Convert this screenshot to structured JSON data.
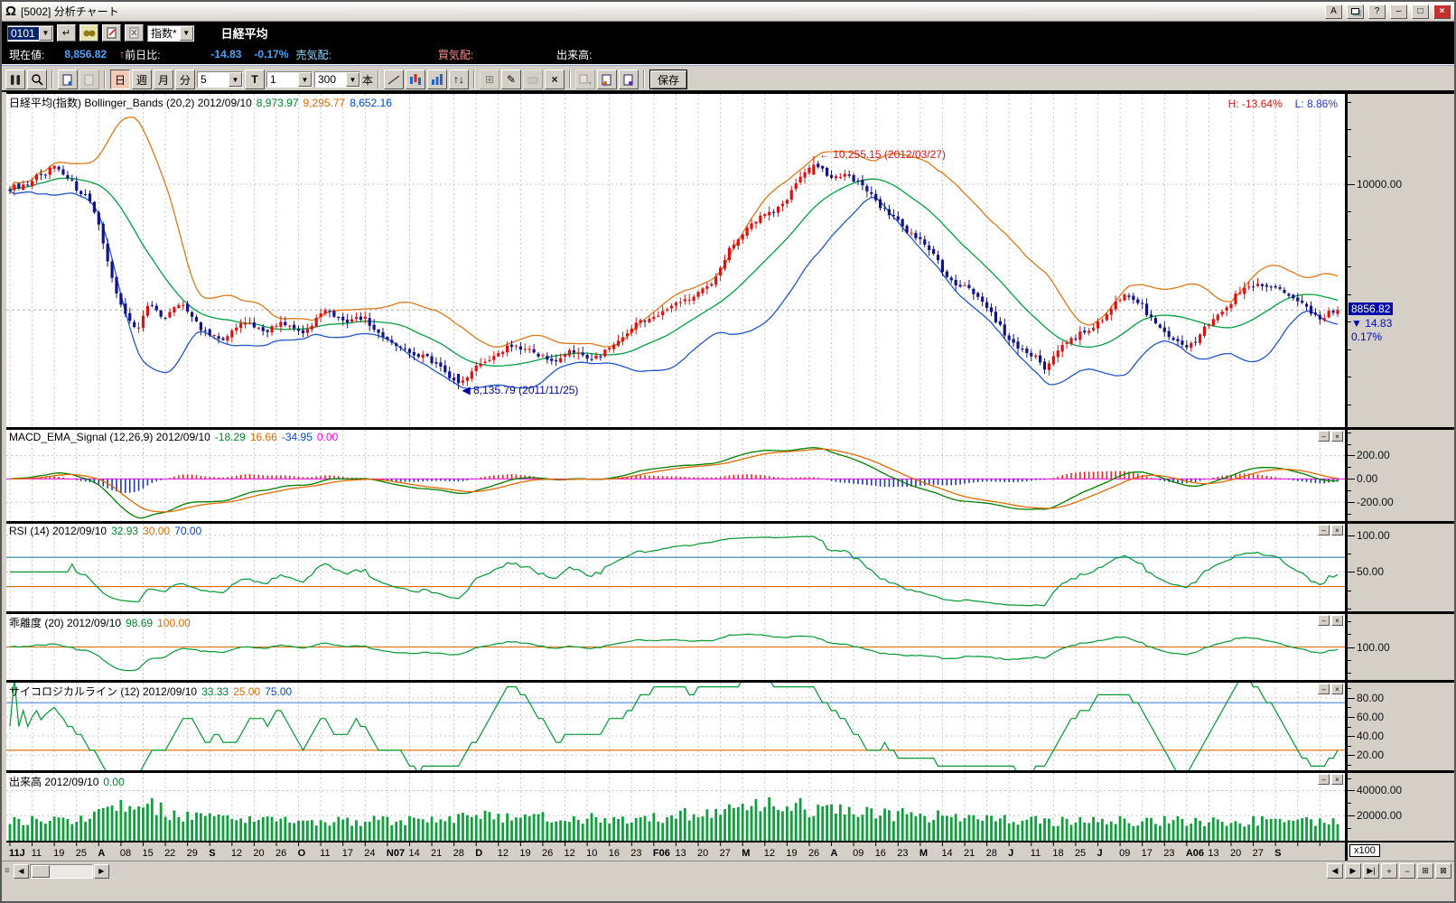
{
  "titlebar": {
    "title": "[5002] 分析チャート",
    "logo": "Ω",
    "a_label": "A",
    "help_label": "?",
    "min_label": "–",
    "max_label": "□",
    "close_label": "×"
  },
  "symbol_bar": {
    "code": "0101",
    "category": "指数*",
    "name": "日経平均"
  },
  "quote_bar": {
    "price_label": "現在値:",
    "price": "8,856.82",
    "arrow": "↑",
    "change_label": "前日比:",
    "change": "-14.83",
    "change_pct": "-0.17%",
    "ask_label": "売気配:",
    "bid_label": "買気配:",
    "volume_label": "出来高:"
  },
  "toolbar": {
    "day": "日",
    "week": "週",
    "month": "月",
    "minute": "分",
    "minute_value": "5",
    "tick_label": "T",
    "tick_value": "1",
    "bars_value": "300",
    "bars_unit": "本",
    "updown": "↑↓",
    "save": "保存"
  },
  "icons": {
    "combo_arrow": "▼",
    "enter": "↵",
    "pencil": "✎",
    "delete": "×",
    "grid": "⊞",
    "grid2": "⊠"
  },
  "main_panel": {
    "title": "日経平均(指数) Bollinger_Bands (20,2) 2012/09/10",
    "values": [
      {
        "text": "8,973.97",
        "color": "#00882a"
      },
      {
        "text": "9,295.77",
        "color": "#e06a00"
      },
      {
        "text": "8,652.16",
        "color": "#0044dd"
      }
    ],
    "high_label": "H: -13.64%",
    "high_color": "#dd1111",
    "low_label": "L: 8.86%",
    "low_color": "#2233cc",
    "price_tag": "8856.82",
    "price_change": "▼ 14.83",
    "price_pct": "0.17%"
  },
  "sub_panels": [
    {
      "id": "macd",
      "title": "MACD_EMA_Signal (12,26,9) 2012/09/10",
      "values": [
        {
          "text": "-18.29",
          "color": "#00882a"
        },
        {
          "text": "16.66",
          "color": "#e06a00"
        },
        {
          "text": "-34.95",
          "color": "#0044dd"
        },
        {
          "text": "0.00",
          "color": "#ff00ff"
        }
      ]
    },
    {
      "id": "rsi",
      "title": "RSI (14) 2012/09/10",
      "values": [
        {
          "text": "32.93",
          "color": "#00882a"
        },
        {
          "text": "30.00",
          "color": "#e06a00"
        },
        {
          "text": "70.00",
          "color": "#0044dd"
        }
      ]
    },
    {
      "id": "dev",
      "title": "乖離度 (20) 2012/09/10",
      "values": [
        {
          "text": "98.69",
          "color": "#00882a"
        },
        {
          "text": "100.00",
          "color": "#e06a00"
        }
      ]
    },
    {
      "id": "psy",
      "title": "サイコロジカルライン (12) 2012/09/10",
      "values": [
        {
          "text": "33.33",
          "color": "#00882a"
        },
        {
          "text": "25.00",
          "color": "#e06a00"
        },
        {
          "text": "75.00",
          "color": "#0044dd"
        }
      ]
    },
    {
      "id": "vol",
      "title": "出来高 2012/09/10",
      "values": [
        {
          "text": "0.00",
          "color": "#00882a"
        }
      ]
    }
  ],
  "volume_unit": "x100",
  "bottom_bar": {
    "nav": [
      "◀",
      "▶",
      "▶|",
      "+",
      "−",
      "⊞",
      "⊠"
    ]
  },
  "chart_data": {
    "type": "candlestick",
    "symbol": "日経平均(指数)",
    "date": "2012/09/10",
    "bars": 300,
    "last_close": 8856.82,
    "high_point": {
      "t": 0.607,
      "price": 10255.15,
      "date": "2012/03/27",
      "label": "← 10,255.15 (2012/03/27)"
    },
    "low_point": {
      "t": 0.337,
      "price": 8135.79,
      "date": "2011/11/25",
      "label": "◀ 8,135.79 (2011/11/25)"
    },
    "price_keypoints": [
      [
        0,
        9950
      ],
      [
        0.02,
        10080
      ],
      [
        0.035,
        10140
      ],
      [
        0.05,
        9930
      ],
      [
        0.062,
        9810
      ],
      [
        0.072,
        9380
      ],
      [
        0.082,
        8920
      ],
      [
        0.095,
        8640
      ],
      [
        0.105,
        8930
      ],
      [
        0.115,
        8760
      ],
      [
        0.13,
        8940
      ],
      [
        0.145,
        8660
      ],
      [
        0.16,
        8560
      ],
      [
        0.175,
        8760
      ],
      [
        0.19,
        8660
      ],
      [
        0.205,
        8760
      ],
      [
        0.22,
        8610
      ],
      [
        0.235,
        8840
      ],
      [
        0.25,
        8760
      ],
      [
        0.265,
        8800
      ],
      [
        0.28,
        8640
      ],
      [
        0.295,
        8500
      ],
      [
        0.31,
        8460
      ],
      [
        0.325,
        8340
      ],
      [
        0.337,
        8180
      ],
      [
        0.35,
        8360
      ],
      [
        0.365,
        8460
      ],
      [
        0.38,
        8560
      ],
      [
        0.395,
        8450
      ],
      [
        0.41,
        8360
      ],
      [
        0.425,
        8460
      ],
      [
        0.44,
        8410
      ],
      [
        0.455,
        8520
      ],
      [
        0.47,
        8720
      ],
      [
        0.485,
        8800
      ],
      [
        0.5,
        8870
      ],
      [
        0.515,
        8960
      ],
      [
        0.53,
        9120
      ],
      [
        0.545,
        9480
      ],
      [
        0.56,
        9640
      ],
      [
        0.575,
        9760
      ],
      [
        0.59,
        9960
      ],
      [
        0.6,
        10120
      ],
      [
        0.607,
        10190
      ],
      [
        0.617,
        10090
      ],
      [
        0.63,
        10060
      ],
      [
        0.645,
        9960
      ],
      [
        0.66,
        9760
      ],
      [
        0.675,
        9560
      ],
      [
        0.69,
        9460
      ],
      [
        0.705,
        9120
      ],
      [
        0.72,
        9060
      ],
      [
        0.735,
        8900
      ],
      [
        0.75,
        8660
      ],
      [
        0.765,
        8500
      ],
      [
        0.78,
        8360
      ],
      [
        0.795,
        8560
      ],
      [
        0.81,
        8660
      ],
      [
        0.825,
        8810
      ],
      [
        0.84,
        9000
      ],
      [
        0.852,
        8860
      ],
      [
        0.864,
        8700
      ],
      [
        0.876,
        8560
      ],
      [
        0.888,
        8460
      ],
      [
        0.9,
        8660
      ],
      [
        0.912,
        8810
      ],
      [
        0.926,
        9050
      ],
      [
        0.94,
        9140
      ],
      [
        0.955,
        9100
      ],
      [
        0.97,
        8950
      ],
      [
        0.985,
        8820
      ],
      [
        1,
        8856.82
      ]
    ],
    "volume_keypoints": [
      [
        0,
        15000
      ],
      [
        0.05,
        17000
      ],
      [
        0.09,
        30000
      ],
      [
        0.1,
        34000
      ],
      [
        0.12,
        20000
      ],
      [
        0.2,
        15000
      ],
      [
        0.3,
        16000
      ],
      [
        0.37,
        20000
      ],
      [
        0.45,
        17000
      ],
      [
        0.5,
        20000
      ],
      [
        0.55,
        24000
      ],
      [
        0.57,
        28000
      ],
      [
        0.585,
        33000
      ],
      [
        0.6,
        26000
      ],
      [
        0.63,
        23000
      ],
      [
        0.7,
        19000
      ],
      [
        0.75,
        17000
      ],
      [
        0.8,
        15000
      ],
      [
        0.85,
        16000
      ],
      [
        0.9,
        15000
      ],
      [
        0.95,
        16000
      ],
      [
        1,
        14000
      ]
    ],
    "indicators": {
      "bollinger": [
        20,
        2
      ],
      "macd": [
        12,
        26,
        9
      ],
      "rsi": 14,
      "dev": 20,
      "psy": 12
    },
    "axes": {
      "main": {
        "min": 7800,
        "max": 10820,
        "minor": 250,
        "ticks": [
          {
            "v": 10000,
            "label": "10000.00"
          }
        ]
      },
      "macd": {
        "min": -360,
        "max": 420,
        "minor": 100,
        "ticks": [
          {
            "v": 200,
            "label": "200.00"
          },
          {
            "v": 0,
            "label": "0.00"
          },
          {
            "v": -200,
            "label": "-200.00"
          }
        ]
      },
      "rsi": {
        "min": -4,
        "max": 116,
        "minor": 25,
        "ticks": [
          {
            "v": 100,
            "label": "100.00"
          },
          {
            "v": 50,
            "label": "50.00"
          }
        ],
        "guides": [
          {
            "v": 70,
            "color": "#2f7fae"
          },
          {
            "v": 30,
            "color": "#e06a00"
          }
        ]
      },
      "dev": {
        "min": 87,
        "max": 113,
        "minor": 5,
        "ticks": [
          {
            "v": 100,
            "label": "100.00"
          }
        ],
        "guides": [
          {
            "v": 100,
            "color": "#e06a00"
          }
        ]
      },
      "psy": {
        "min": 4,
        "max": 96,
        "minor": 10,
        "ticks": [
          {
            "v": 80,
            "label": "80.00"
          },
          {
            "v": 60,
            "label": "60.00"
          },
          {
            "v": 40,
            "label": "40.00"
          },
          {
            "v": 20,
            "label": "20.00"
          }
        ],
        "guides": [
          {
            "v": 75,
            "color": "#4a86d8"
          },
          {
            "v": 25,
            "color": "#e06a00"
          }
        ]
      },
      "vol": {
        "min": 0,
        "max": 54000,
        "minor": 10000,
        "ticks": [
          {
            "v": 40000,
            "label": "40000.00"
          },
          {
            "v": 20000,
            "label": "20000.00"
          }
        ]
      }
    },
    "colors": {
      "up": "#dd1111",
      "down": "#131388",
      "boll_mid": "#00a040",
      "boll_up": "#e07818",
      "boll_low": "#2255cc",
      "macd_line": "#008000",
      "macd_signal": "#e06a00",
      "hist_pos": "#ee2222",
      "hist_neg": "#2233bb",
      "zero": "#ff00ff",
      "indicator": "#009933",
      "volume": "#0f9f3c",
      "grid": "#c9c9c9",
      "price_line": "#b0b0b0"
    },
    "grid_every_bars": 5,
    "x_labels": [
      "11J",
      "11",
      "19",
      "25",
      "A",
      "08",
      "15",
      "22",
      "29",
      "S",
      "12",
      "20",
      "26",
      "O",
      "11",
      "17",
      "24",
      "N07",
      "14",
      "21",
      "28",
      "D",
      "12",
      "19",
      "26",
      "12",
      "10",
      "16",
      "23",
      "F06",
      "13",
      "20",
      "27",
      "M",
      "12",
      "19",
      "26",
      "A",
      "09",
      "16",
      "23",
      "M",
      "14",
      "21",
      "28",
      "J",
      "11",
      "18",
      "25",
      "J",
      "09",
      "17",
      "23",
      "A06",
      "13",
      "20",
      "27",
      "S"
    ]
  }
}
